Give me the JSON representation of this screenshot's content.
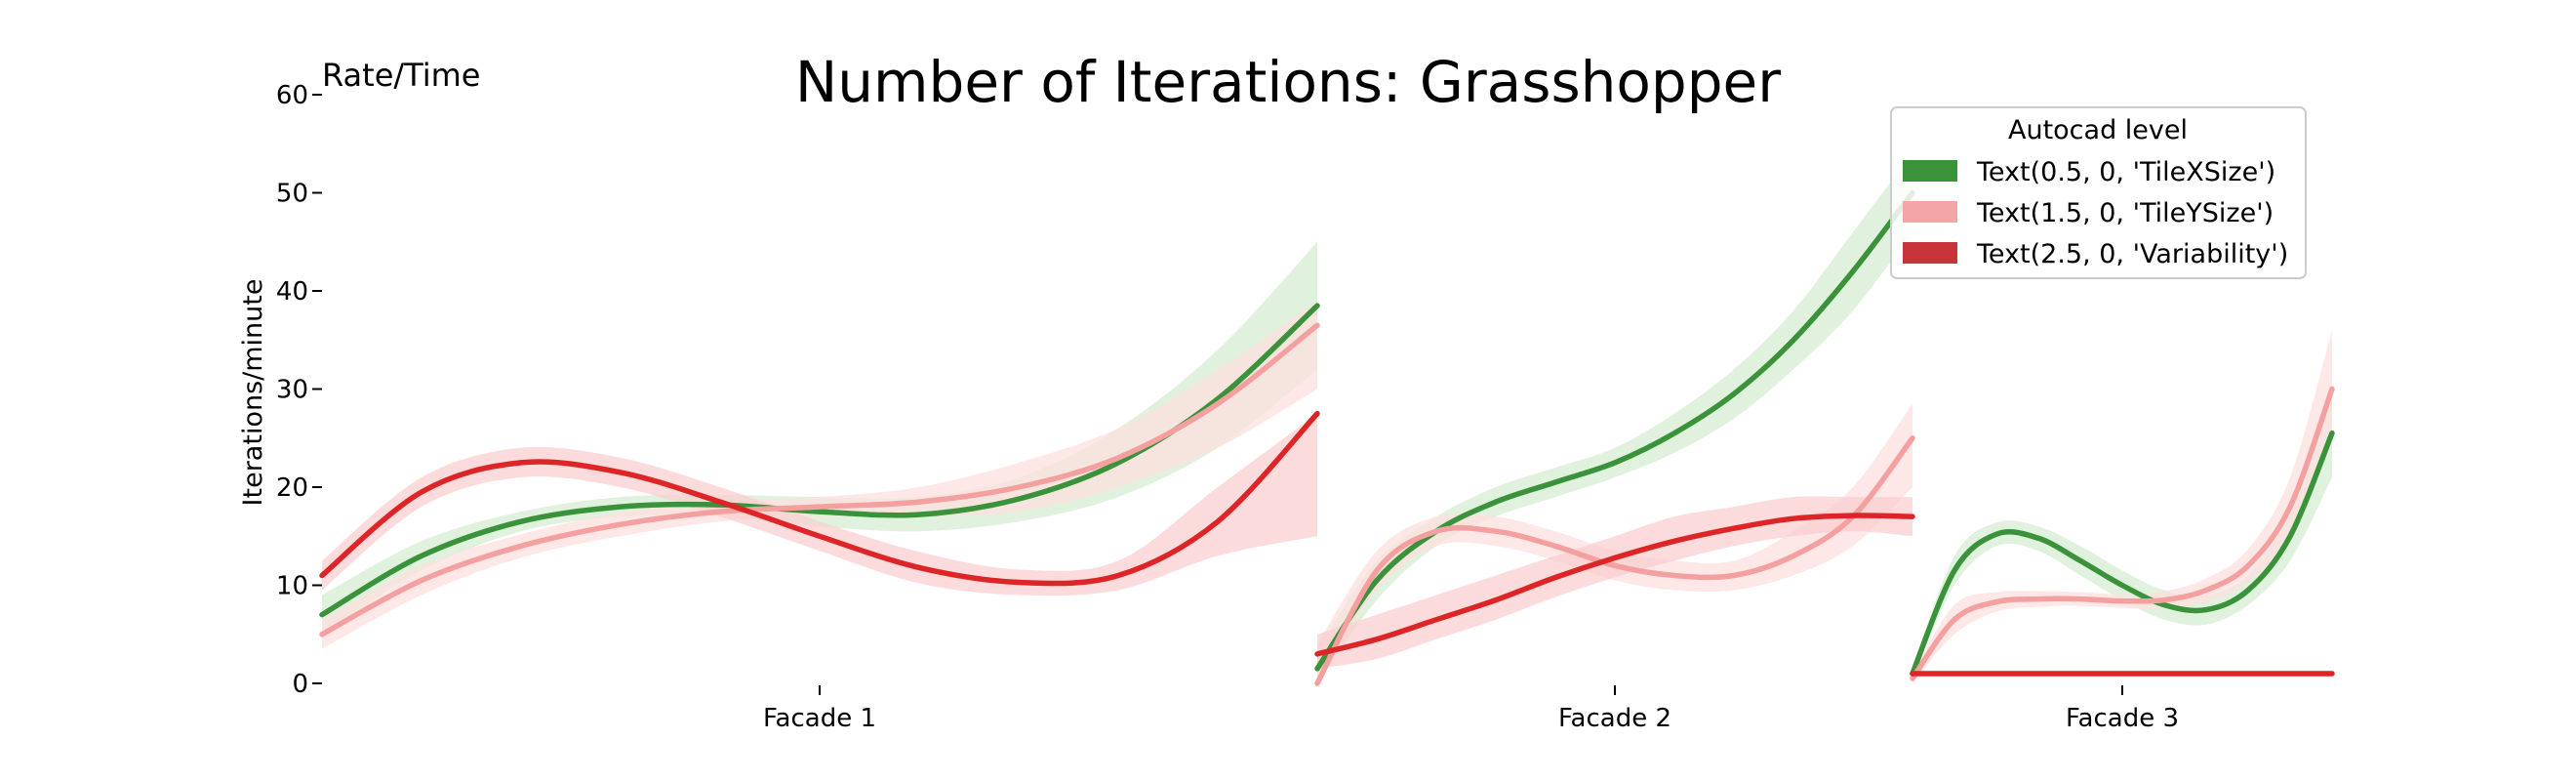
{
  "chart_data": {
    "type": "line",
    "title": "Number of Iterations: Grasshopper",
    "corner_label": "Rate/Time",
    "ylabel": "Iterations/minute",
    "xlabel": "",
    "ylim": [
      0,
      60
    ],
    "yticks": [
      0,
      10,
      20,
      30,
      40,
      50,
      60
    ],
    "grid": false,
    "legend": {
      "title": "Autocad level",
      "placement": "top-right",
      "entries": [
        {
          "label": "Text(0.5, 0, 'TileXSize')",
          "color": "#3a923a"
        },
        {
          "label": "Text(1.5, 0, 'TileYSize')",
          "color": "#f4a6a4"
        },
        {
          "label": "Text(2.5, 0, 'Variability')",
          "color": "#c9343a"
        }
      ]
    },
    "panels": [
      {
        "name": "Facade 1",
        "series": [
          {
            "key": "TileXSize",
            "color": "#3a923a",
            "band": "#d5ecd2",
            "x": [
              0,
              0.1,
              0.2,
              0.3,
              0.4,
              0.5,
              0.6,
              0.7,
              0.8,
              0.9,
              1.0
            ],
            "y": [
              7,
              13,
              16.5,
              18,
              18.2,
              17.5,
              17.2,
              18.8,
              22.5,
              29,
              38.5
            ],
            "lower": [
              5,
              11.5,
              15.5,
              17,
              17,
              16,
              15.5,
              16.5,
              19,
              24,
              32
            ],
            "upper": [
              9,
              14.5,
              17.5,
              19,
              19.2,
              19,
              19,
              21,
              26,
              34,
              45
            ]
          },
          {
            "key": "TileYSize",
            "color": "#f4a0a0",
            "band": "#fde0df",
            "x": [
              0,
              0.1,
              0.2,
              0.3,
              0.4,
              0.5,
              0.6,
              0.7,
              0.8,
              0.9,
              1.0
            ],
            "y": [
              5,
              10.5,
              14,
              16.2,
              17.5,
              18,
              18.5,
              20,
              23,
              28.5,
              36.5
            ],
            "lower": [
              3.5,
              9,
              12.8,
              15,
              16.5,
              17,
              17,
              17.5,
              20,
              24,
              30
            ],
            "upper": [
              6.5,
              12,
              15.2,
              17.4,
              18.5,
              19,
              20,
              22.5,
              26,
              32,
              39
            ]
          },
          {
            "key": "Variability",
            "color": "#dd2426",
            "band": "#f9cfcf",
            "x": [
              0,
              0.1,
              0.2,
              0.3,
              0.4,
              0.5,
              0.6,
              0.7,
              0.8,
              0.9,
              1.0
            ],
            "y": [
              11,
              19.5,
              22.5,
              21.5,
              18.5,
              15,
              11.8,
              10.3,
              11,
              16.5,
              27.5
            ],
            "lower": [
              9.5,
              18,
              21,
              20,
              17,
              13.5,
              10.2,
              9,
              9.5,
              13,
              15
            ],
            "upper": [
              12.5,
              21,
              24,
              23,
              20,
              16.5,
              13.4,
              11.6,
              12.5,
              20,
              27.5
            ]
          }
        ]
      },
      {
        "name": "Facade 2",
        "series": [
          {
            "key": "TileXSize",
            "color": "#3a923a",
            "band": "#d5ecd2",
            "x": [
              0,
              0.1,
              0.2,
              0.3,
              0.4,
              0.5,
              0.6,
              0.7,
              0.8,
              0.9,
              1.0
            ],
            "y": [
              1.5,
              10.5,
              15.5,
              18.5,
              20.5,
              22.5,
              25.5,
              29.5,
              35,
              42,
              50
            ],
            "lower": [
              0,
              8.5,
              14,
              17,
              19,
              21,
              23.5,
              27,
              32,
              38,
              46
            ],
            "upper": [
              3.5,
              12.5,
              17,
              20,
              22,
              24,
              27.5,
              32,
              38,
              46,
              54
            ]
          },
          {
            "key": "TileYSize",
            "color": "#f4a0a0",
            "band": "#fde0df",
            "x": [
              0,
              0.1,
              0.2,
              0.3,
              0.4,
              0.5,
              0.6,
              0.7,
              0.8,
              0.9,
              1.0
            ],
            "y": [
              0,
              11.5,
              15.5,
              15.5,
              14,
              12,
              11,
              11,
              13,
              17,
              25
            ],
            "lower": [
              0,
              9.5,
              14,
              14,
              12.5,
              10.5,
              9.5,
              9.5,
              11,
              14,
              20
            ],
            "upper": [
              4,
              13.5,
              17,
              17,
              15.5,
              13.5,
              12.5,
              12.5,
              15.5,
              20,
              28.5
            ]
          },
          {
            "key": "Variability",
            "color": "#dd2426",
            "band": "#f9cfcf",
            "x": [
              0,
              0.1,
              0.2,
              0.3,
              0.4,
              0.5,
              0.6,
              0.7,
              0.8,
              0.9,
              1.0
            ],
            "y": [
              3,
              4.5,
              6.5,
              8.5,
              10.8,
              12.8,
              14.5,
              15.8,
              16.8,
              17.1,
              17
            ],
            "lower": [
              1.5,
              2.5,
              4.5,
              6.5,
              8.8,
              10.8,
              12.5,
              14,
              15,
              15.5,
              15
            ],
            "upper": [
              5,
              7,
              9,
              11,
              13,
              15,
              17,
              18,
              19,
              19,
              19
            ]
          }
        ]
      },
      {
        "name": "Facade 3",
        "series": [
          {
            "key": "TileXSize",
            "color": "#3a923a",
            "band": "#d5ecd2",
            "x": [
              0,
              0.1,
              0.2,
              0.3,
              0.4,
              0.5,
              0.6,
              0.7,
              0.8,
              0.9,
              1.0
            ],
            "y": [
              1,
              11.5,
              15.2,
              14.8,
              12.5,
              10,
              8,
              7.5,
              9.5,
              15,
              25.5
            ],
            "lower": [
              0.5,
              10,
              14,
              13.5,
              11,
              8.5,
              6.5,
              6,
              8,
              12.5,
              21
            ],
            "upper": [
              1.5,
              13,
              16.4,
              16,
              14,
              11.5,
              9.5,
              9,
              11,
              17.5,
              29
            ]
          },
          {
            "key": "TileYSize",
            "color": "#f4a0a0",
            "band": "#fde0df",
            "x": [
              0,
              0.1,
              0.2,
              0.3,
              0.4,
              0.5,
              0.6,
              0.7,
              0.8,
              0.9,
              1.0
            ],
            "y": [
              0.5,
              6.5,
              8.3,
              8.6,
              8.6,
              8.4,
              8.5,
              9.5,
              12,
              18,
              30
            ],
            "lower": [
              0,
              5,
              7.3,
              7.8,
              7.9,
              7.7,
              7.6,
              8.3,
              10.3,
              15,
              24.5
            ],
            "upper": [
              1,
              8,
              9.3,
              9.4,
              9.3,
              9.1,
              9.4,
              10.7,
              13.7,
              21,
              36
            ]
          },
          {
            "key": "Variability",
            "color": "#dd2426",
            "band": "#f9cfcf",
            "x": [
              0,
              0.1,
              0.2,
              0.3,
              0.4,
              0.5,
              0.6,
              0.7,
              0.8,
              0.9,
              1.0
            ],
            "y": [
              1,
              1,
              1,
              1,
              1,
              1,
              1,
              1,
              1,
              1,
              1
            ],
            "lower": [
              1,
              1,
              1,
              1,
              1,
              1,
              1,
              1,
              1,
              1,
              1
            ],
            "upper": [
              1,
              1,
              1,
              1,
              1,
              1,
              1,
              1,
              1,
              1,
              1
            ]
          }
        ]
      }
    ]
  }
}
